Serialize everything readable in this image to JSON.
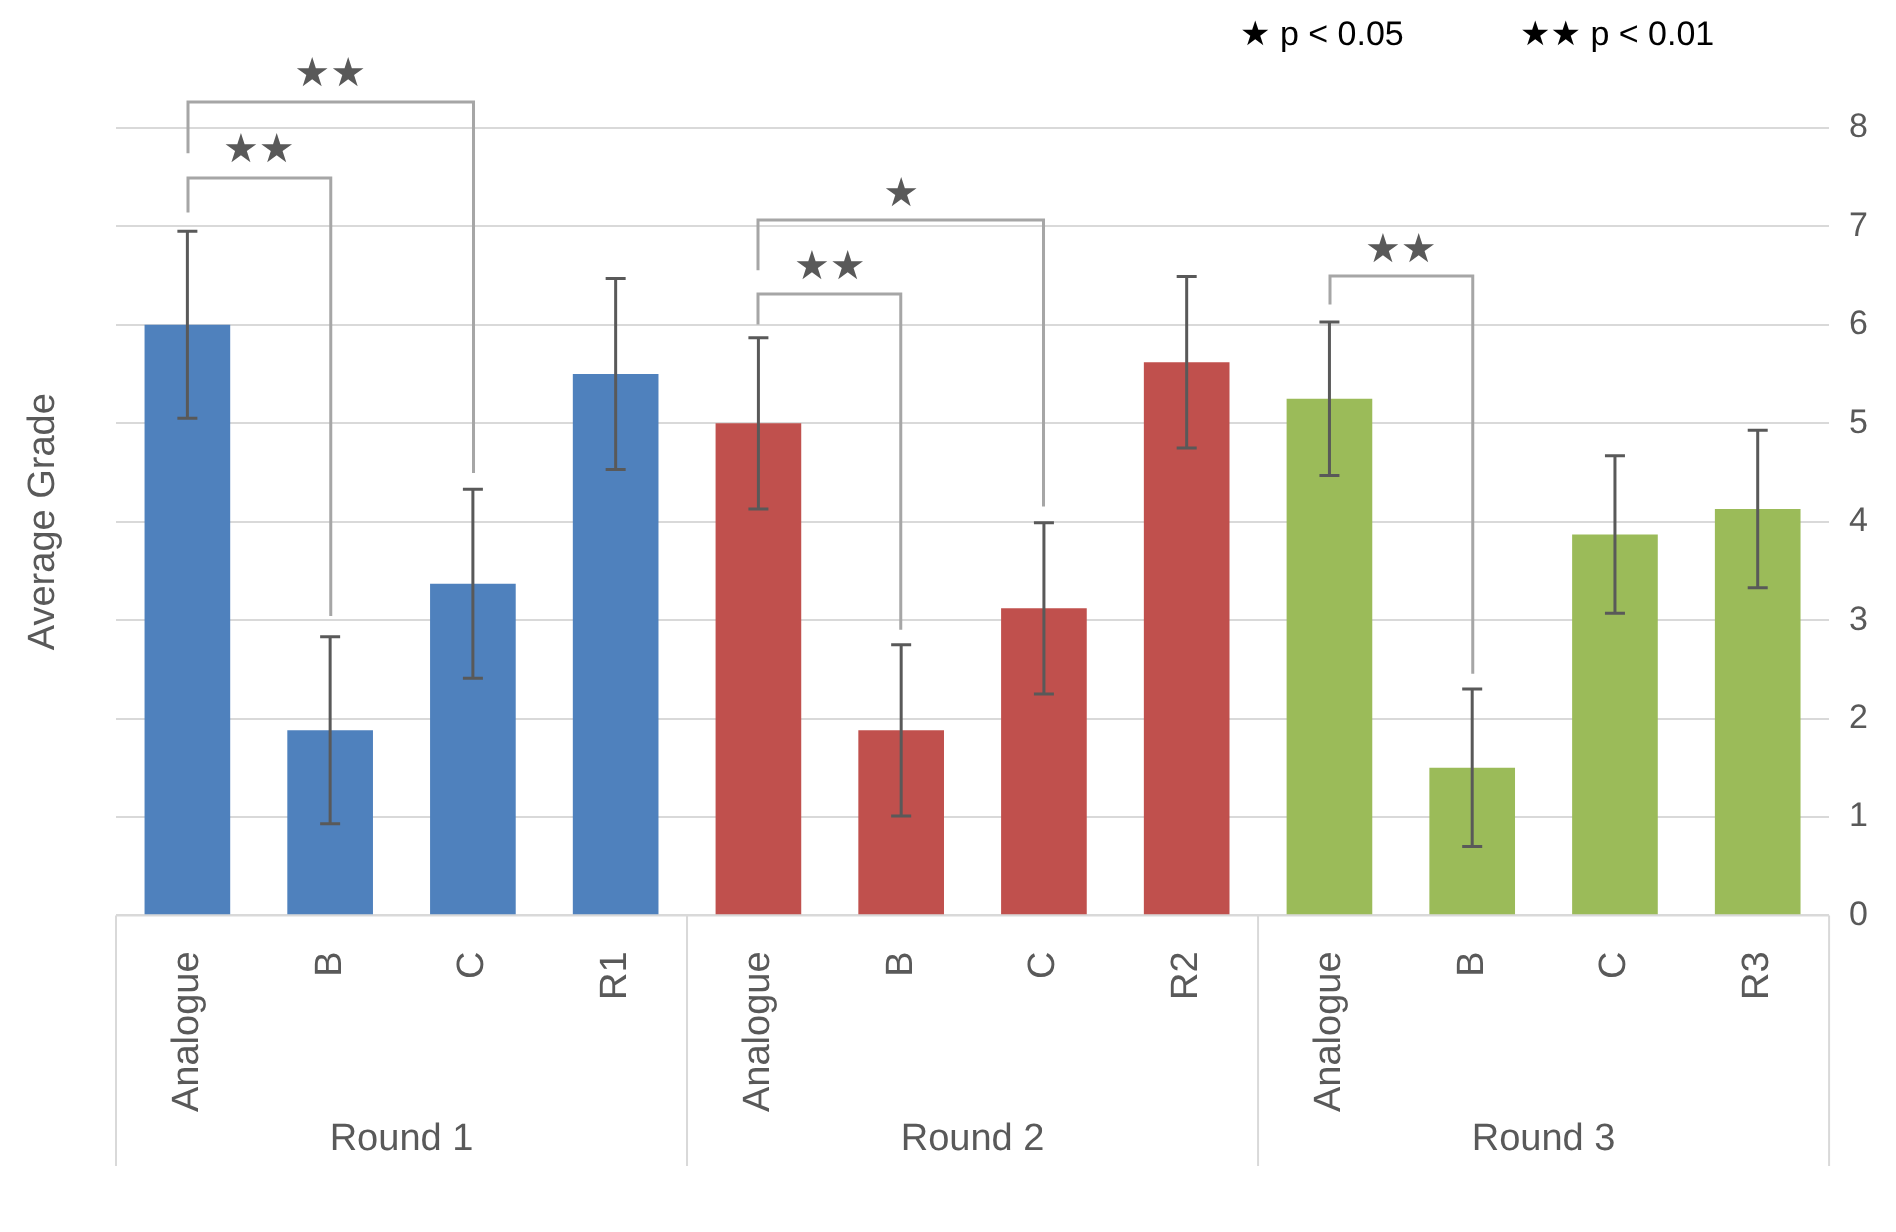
{
  "chart_data": {
    "type": "bar",
    "ylabel": "Average Grade",
    "categories": [
      "Analogue",
      "B",
      "C",
      "R1",
      "Analogue",
      "B",
      "C",
      "R2",
      "Analogue",
      "B",
      "C",
      "R3"
    ],
    "values": [
      6.0,
      1.88,
      3.37,
      5.5,
      5.0,
      1.88,
      3.12,
      5.62,
      5.25,
      1.5,
      3.87,
      4.13
    ],
    "errors": [
      0.95,
      0.95,
      0.96,
      0.97,
      0.87,
      0.87,
      0.87,
      0.87,
      0.78,
      0.8,
      0.8,
      0.8
    ],
    "colors": [
      "#4f81bd",
      "#4f81bd",
      "#4f81bd",
      "#4f81bd",
      "#c0504d",
      "#c0504d",
      "#c0504d",
      "#c0504d",
      "#9bbb59",
      "#9bbb59",
      "#9bbb59",
      "#9bbb59"
    ],
    "ylim": [
      0,
      8
    ],
    "yticks": [
      0,
      1,
      2,
      3,
      4,
      5,
      6,
      7,
      8
    ],
    "grid": "y",
    "annotations": [
      "★ p < 0.05",
      "★★ p < 0.01",
      "★★",
      "★★",
      "★★",
      "★",
      "★★",
      "Round 1",
      "Round 2",
      "Round 3"
    ]
  }
}
